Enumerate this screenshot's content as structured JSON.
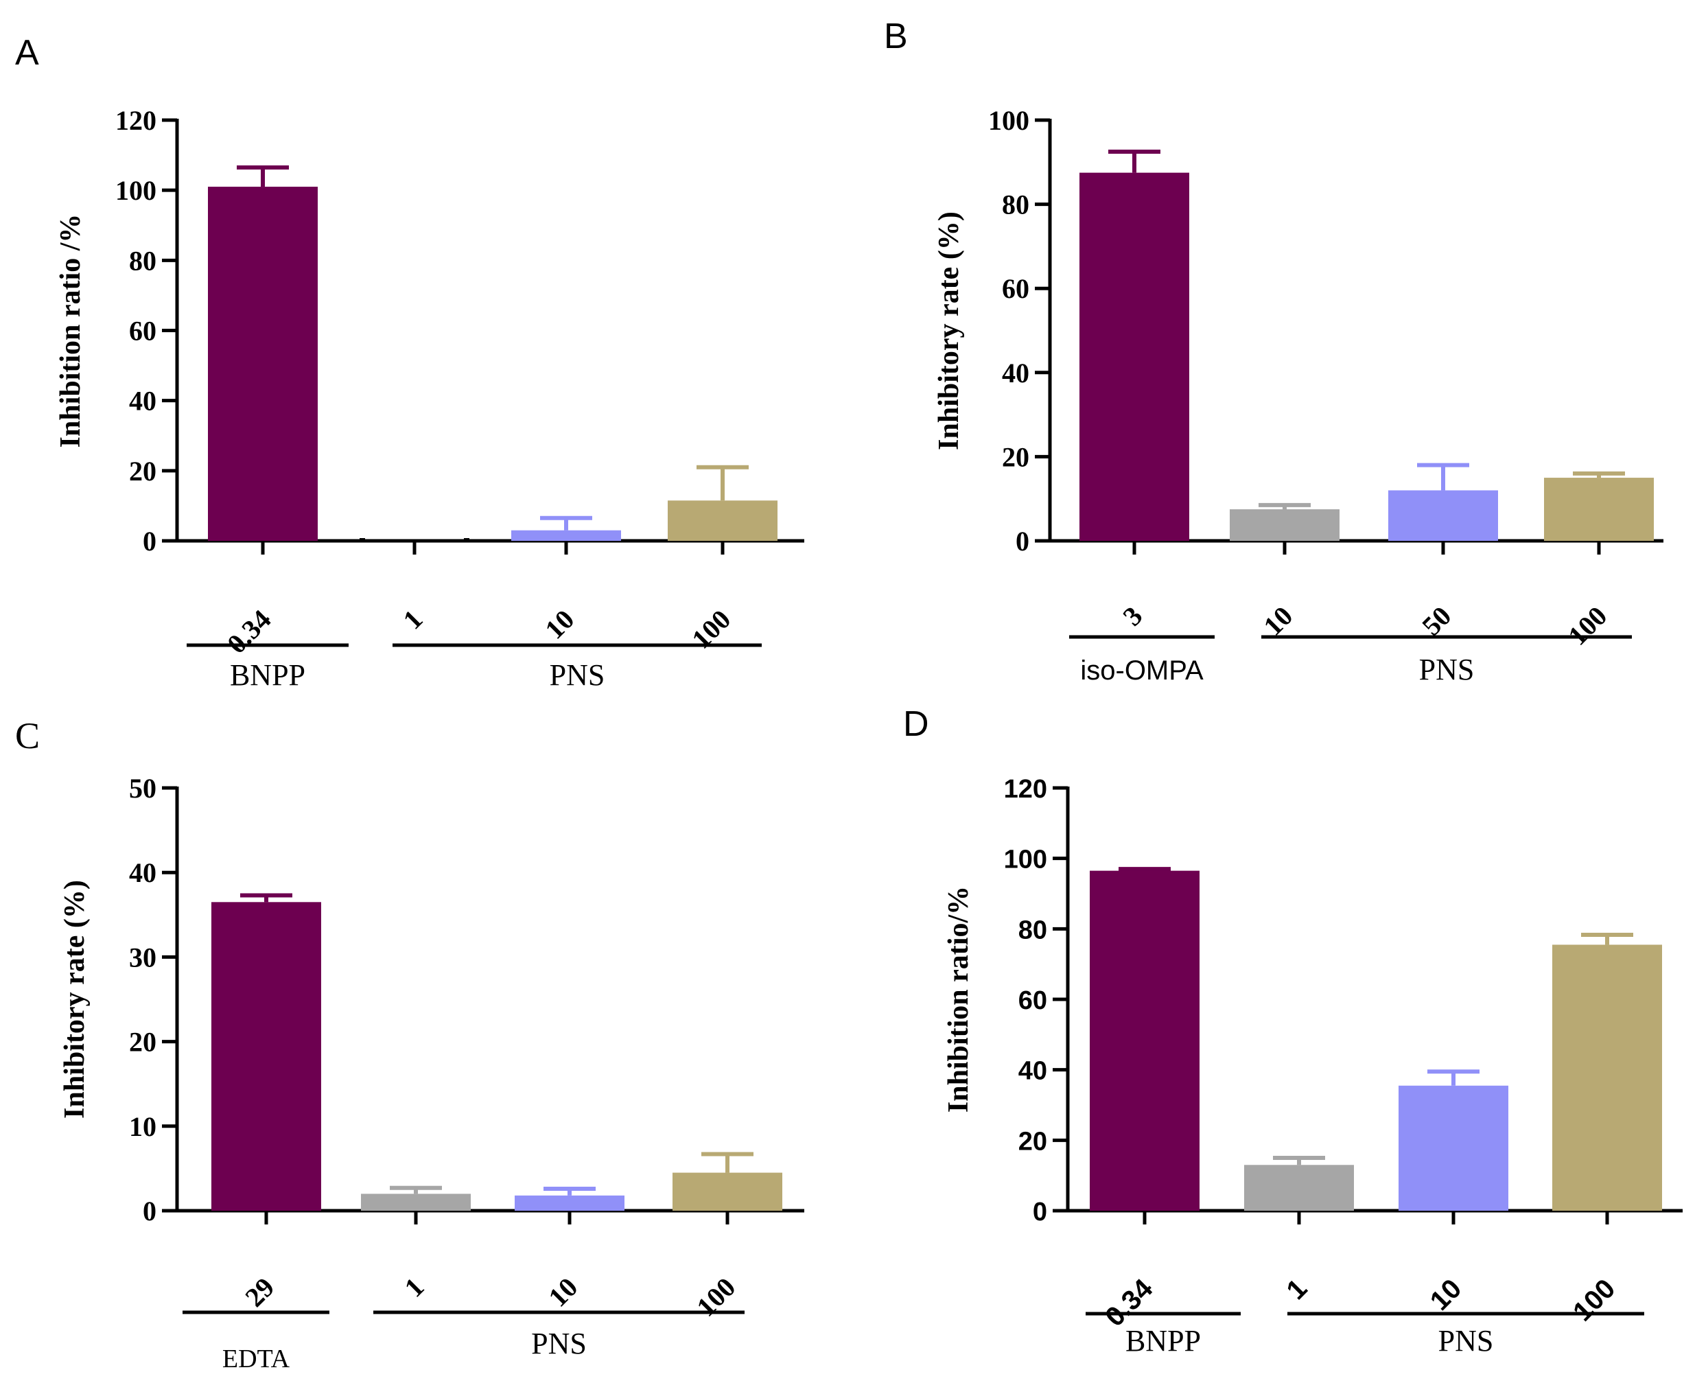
{
  "figure": {
    "colors": {
      "purple": "#6d0050",
      "gray": "#a6a6a6",
      "blue": "#9090f8",
      "khaki": "#b8a973",
      "axis": "#000000"
    }
  },
  "chart_data": [
    {
      "panel": "A",
      "type": "bar",
      "ylabel": "Inhibition ratio /%",
      "ylim": [
        0,
        120
      ],
      "yticks": [
        "0",
        "20",
        "40",
        "60",
        "80",
        "100",
        "120"
      ],
      "categories": [
        "0.34",
        "1",
        "10",
        "100"
      ],
      "values": [
        101,
        0,
        3,
        11.5
      ],
      "errors": [
        5.5,
        0.5,
        3.5,
        9.5
      ],
      "colors": [
        "#6d0050",
        "#a6a6a6",
        "#9090f8",
        "#b8a973"
      ],
      "groups": [
        {
          "label": "BNPP",
          "categories": [
            0
          ]
        },
        {
          "label": "PNS",
          "categories": [
            1,
            2,
            3
          ]
        }
      ]
    },
    {
      "panel": "B",
      "type": "bar",
      "ylabel": "Inhibitory rate (%)",
      "ylim": [
        0,
        100
      ],
      "yticks": [
        "0",
        "20",
        "40",
        "60",
        "80",
        "100"
      ],
      "categories": [
        "3",
        "10",
        "50",
        "100"
      ],
      "values": [
        87.5,
        7.5,
        12,
        15
      ],
      "errors": [
        5,
        1,
        6,
        1
      ],
      "colors": [
        "#6d0050",
        "#a6a6a6",
        "#9090f8",
        "#b8a973"
      ],
      "groups": [
        {
          "label": "iso-OMPA",
          "categories": [
            0
          ]
        },
        {
          "label": "PNS",
          "categories": [
            1,
            2,
            3
          ]
        }
      ]
    },
    {
      "panel": "C",
      "type": "bar",
      "ylabel": "Inhibitory rate (%)",
      "ylim": [
        0,
        50
      ],
      "yticks": [
        "0",
        "10",
        "20",
        "30",
        "40",
        "50"
      ],
      "categories": [
        "29",
        "1",
        "10",
        "100"
      ],
      "values": [
        36.5,
        2,
        1.8,
        4.5
      ],
      "errors": [
        0.8,
        0.7,
        0.8,
        2.2
      ],
      "colors": [
        "#6d0050",
        "#a6a6a6",
        "#9090f8",
        "#b8a973"
      ],
      "groups": [
        {
          "label": "EDTA",
          "categories": [
            0
          ]
        },
        {
          "label": "PNS",
          "categories": [
            1,
            2,
            3
          ]
        }
      ]
    },
    {
      "panel": "D",
      "type": "bar",
      "ylabel": "Inhibition ratio/%",
      "ylim": [
        0,
        120
      ],
      "yticks": [
        "0",
        "20",
        "40",
        "60",
        "80",
        "100",
        "120"
      ],
      "categories": [
        "0.34",
        "1",
        "10",
        "100"
      ],
      "values": [
        96.5,
        13,
        35.5,
        75.5
      ],
      "errors": [
        0.5,
        2,
        4,
        2.8
      ],
      "colors": [
        "#6d0050",
        "#a6a6a6",
        "#9090f8",
        "#b8a973"
      ],
      "groups": [
        {
          "label": "BNPP",
          "categories": [
            0
          ]
        },
        {
          "label": "PNS",
          "categories": [
            1,
            2,
            3
          ]
        }
      ]
    }
  ]
}
